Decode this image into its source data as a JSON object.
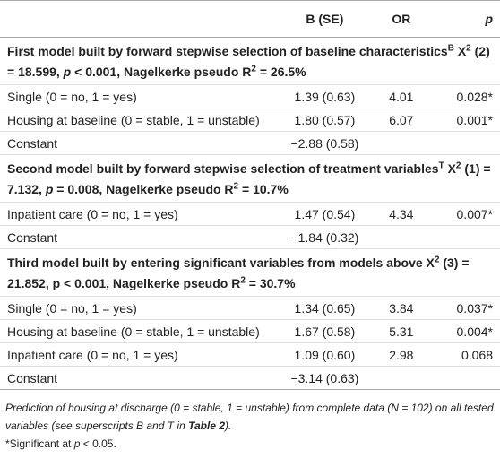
{
  "table": {
    "columns": [
      "B (SE)",
      "OR",
      "p"
    ],
    "sections": [
      {
        "title": [
          "First model built by forward stepwise selection of baseline characteristics",
          "B",
          " X",
          "2",
          " (2) = 18.599, ",
          "p",
          " < 0.001, Nagelkerke pseudo R",
          "2",
          " = 26.5%"
        ],
        "rows": [
          [
            "Single (0 = no, 1 = yes)",
            "1.39 (0.63)",
            "4.01",
            "0.028*"
          ],
          [
            "Housing at baseline (0 = stable, 1 = unstable)",
            "1.80 (0.57)",
            "6.07",
            "0.001*"
          ],
          [
            "Constant",
            "−2.88 (0.58)"
          ]
        ]
      },
      {
        "title": [
          "Second model built by forward stepwise selection of treatment variables",
          "T",
          " X",
          "2",
          " (1) = 7.132, ",
          "p",
          " = 0.008, Nagelkerke pseudo R",
          "2",
          " = 10.7%"
        ],
        "rows": [
          [
            "Inpatient care (0 = no, 1 = yes)",
            "1.47 (0.54)",
            "4.34",
            "0.007*"
          ],
          [
            "Constant",
            "−1.84 (0.32)"
          ]
        ]
      },
      {
        "title": [
          "Third model built by entering significant variables from models above X",
          "2",
          " (3) = 21.852, p < 0.001, Nagelkerke pseudo R",
          "2",
          " = 30.7%"
        ],
        "rows": [
          [
            "Single (0 = no, 1 = yes)",
            "1.34 (0.65)",
            "3.84",
            "0.037*"
          ],
          [
            "Housing at baseline (0 = stable, 1 = unstable)",
            "1.67 (0.58)",
            "5.31",
            "0.004*"
          ],
          [
            "Inpatient care (0 = no, 1 = yes)",
            "1.09 (0.60)",
            "2.98",
            "0.068"
          ],
          [
            "Constant",
            "−3.14 (0.63)"
          ]
        ]
      }
    ],
    "footnote": [
      "Prediction of housing at discharge (0 = stable, 1 = unstable) from complete data (N = 102) on all tested variables (see superscripts B and T in ",
      "Table 2",
      ")."
    ],
    "note": [
      "*Significant at ",
      "p",
      " < 0.05."
    ]
  }
}
